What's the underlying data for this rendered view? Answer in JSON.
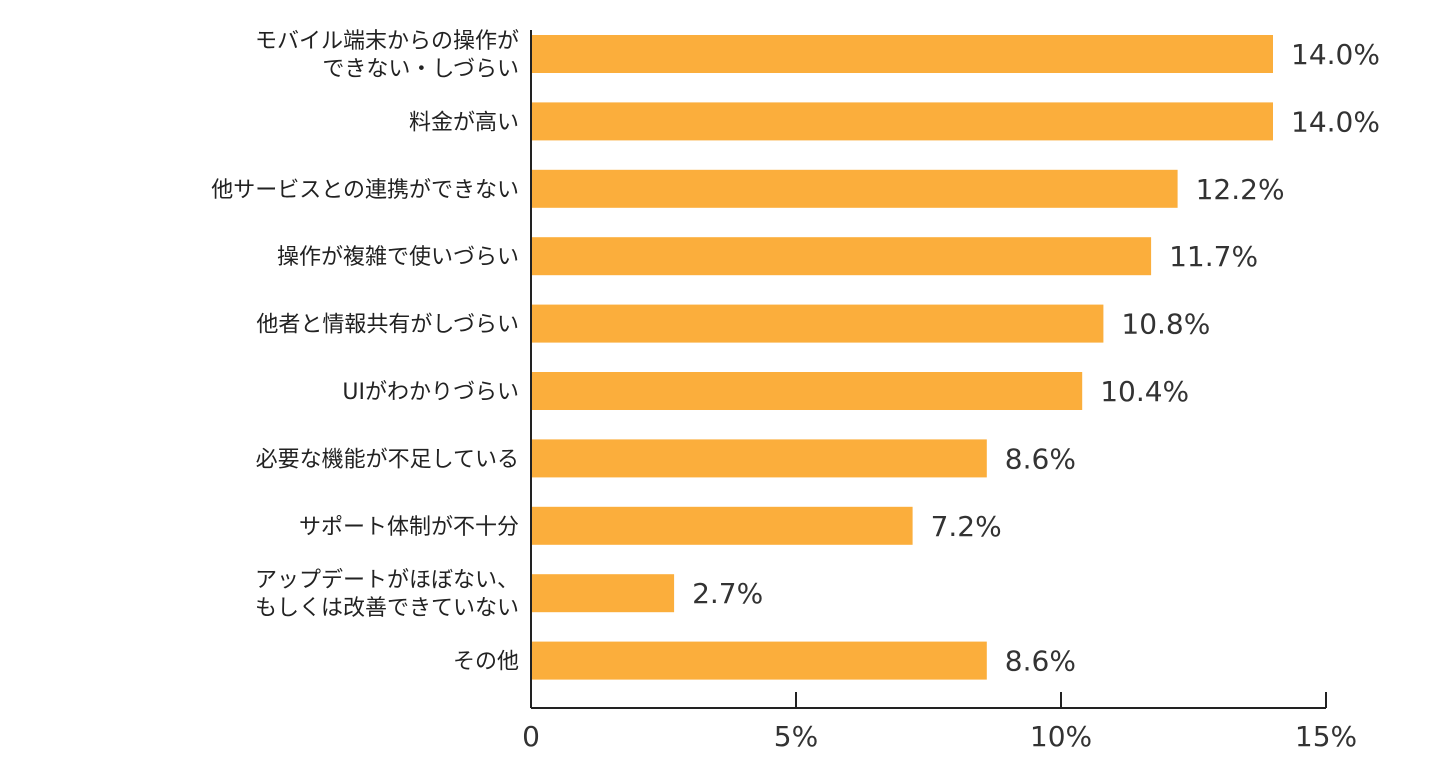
{
  "chart_data": {
    "type": "bar",
    "orientation": "horizontal",
    "title": "",
    "xlabel": "",
    "ylabel": "",
    "categories": [
      [
        "モバイル端末からの操作が",
        "できない・しづらい"
      ],
      [
        "料金が高い"
      ],
      [
        "他サービスとの連携ができない"
      ],
      [
        "操作が複雑で使いづらい"
      ],
      [
        "他者と情報共有がしづらい"
      ],
      [
        "UIがわかりづらい"
      ],
      [
        "必要な機能が不足している"
      ],
      [
        "サポート体制が不十分"
      ],
      [
        "アップデートがほぼない、",
        "もしくは改善できていない"
      ],
      [
        "その他"
      ]
    ],
    "values": [
      14.0,
      14.0,
      12.2,
      11.7,
      10.8,
      10.4,
      8.6,
      7.2,
      2.7,
      8.6
    ],
    "value_labels": [
      "14.0%",
      "14.0%",
      "12.2%",
      "11.7%",
      "10.8%",
      "10.4%",
      "8.6%",
      "7.2%",
      "2.7%",
      "8.6%"
    ],
    "xlim": [
      0,
      15
    ],
    "x_ticks": [
      0,
      5,
      10,
      15
    ],
    "x_tick_labels": [
      "0",
      "5%",
      "10%",
      "15%"
    ],
    "grid": false,
    "legend": "none",
    "bar_color": "#FBAE3C",
    "axis_color": "#222222"
  }
}
